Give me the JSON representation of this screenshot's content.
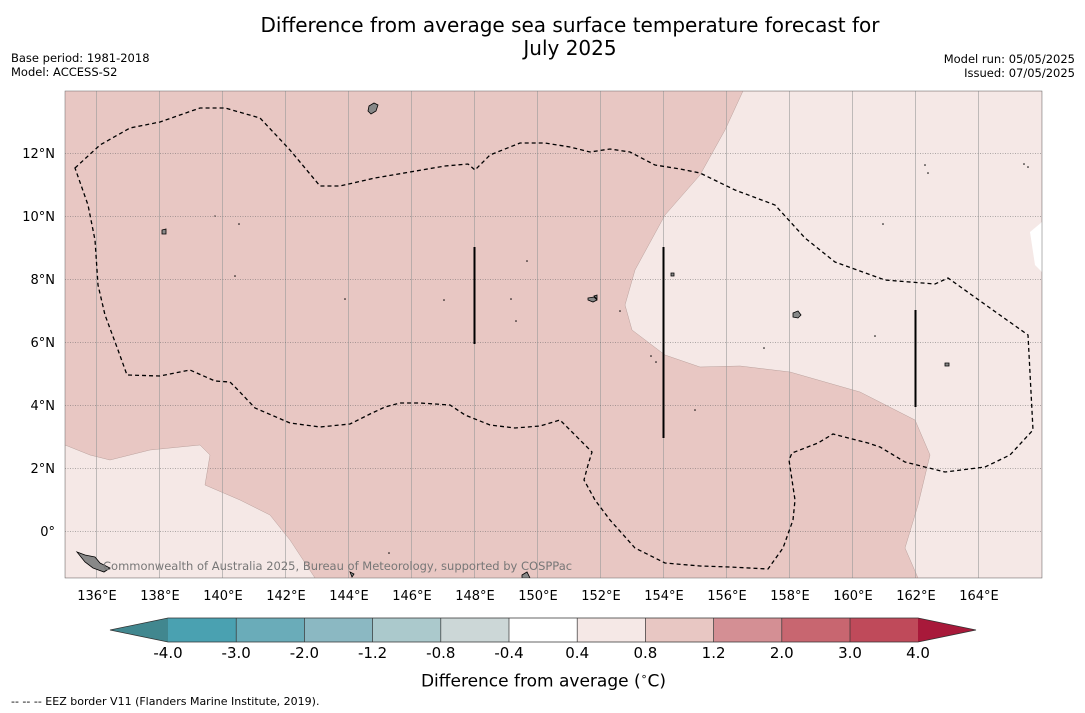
{
  "title": {
    "line1": "Difference from average sea surface temperature forecast for",
    "line2": "July 2025"
  },
  "meta_left": {
    "base_period": "Base period: 1981-2018",
    "model": "Model: ACCESS-S2"
  },
  "meta_right": {
    "model_run": "Model run: 05/05/2025",
    "issued": "Issued: 07/05/2025"
  },
  "map": {
    "lat_labels": [
      "12°N",
      "10°N",
      "8°N",
      "6°N",
      "4°N",
      "2°N",
      "0°"
    ],
    "lon_labels": [
      "136°E",
      "138°E",
      "140°E",
      "142°E",
      "144°E",
      "146°E",
      "148°E",
      "150°E",
      "152°E",
      "154°E",
      "156°E",
      "158°E",
      "160°E",
      "162°E",
      "164°E"
    ],
    "copyright": "Commonwealth of Australia 2025, Bureau of Meteorology, supported by COSPPac",
    "background_color": "#e8c7c3",
    "light_region_color": "#f5e8e6"
  },
  "colorbar": {
    "tick_labels": [
      "-4.0",
      "-3.0",
      "-2.0",
      "-1.2",
      "-0.8",
      "-0.4",
      "0.4",
      "0.8",
      "1.2",
      "2.0",
      "3.0",
      "4.0"
    ],
    "colors": [
      "#4aa1b1",
      "#6aacb9",
      "#8bb8c2",
      "#abc9cc",
      "#ccd7d7",
      "#ffffff",
      "#f5e8e6",
      "#e8c7c3",
      "#d48f94",
      "#c86670",
      "#bf4a5a"
    ],
    "under_color": "#41878f",
    "over_color": "#a8193a",
    "label_main": "Difference from average (",
    "label_sup": "∘",
    "label_end": "C)"
  },
  "footer": "--  --  -- EEZ border V11 (Flanders Marine Institute, 2019)."
}
